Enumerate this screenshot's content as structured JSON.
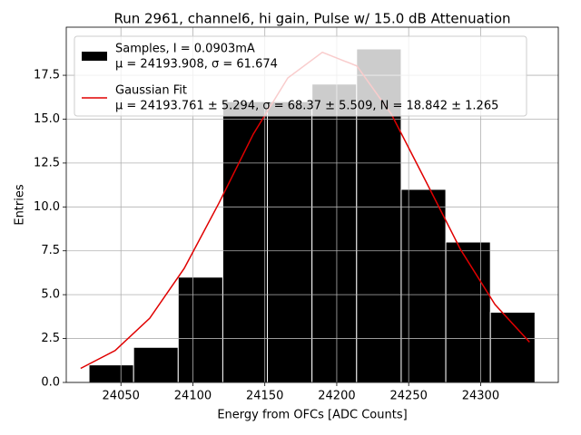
{
  "chart_data": {
    "type": "histogram",
    "title": "Run 2961, channel6, hi gain, Pulse w/ 15.0 dB Attenuation",
    "x_label": "Energy from OFCs [ADC Counts]",
    "y_label": "Entries",
    "bins": [
      24027.8,
      24058.8,
      24089.8,
      24120.8,
      24151.8,
      24182.8,
      24213.8,
      24244.8,
      24275.8,
      24306.8,
      24337.8
    ],
    "series": [
      {
        "name": "Samples, I = 0.0903mA",
        "stats": "μ = 24193.908, σ = 61.674",
        "color": "#000000",
        "edgecolor": "#ffffff",
        "values": [
          1,
          2,
          6,
          16,
          16,
          17,
          19,
          11,
          8,
          4
        ]
      },
      {
        "name": "Gaussian Fit",
        "stats": "μ = 24193.761 ± 5.294, σ = 68.37 ± 5.509, N = 18.842 ± 1.265",
        "color": "#e00000",
        "x": [
          24022,
          24046,
          24070,
          24094,
          24118,
          24142,
          24166,
          24190,
          24214,
          24238,
          24262,
          24286,
          24310,
          24334
        ],
        "values": [
          0.8,
          1.82,
          3.66,
          6.5,
          10.2,
          14.15,
          17.35,
          18.81,
          18.03,
          15.28,
          11.45,
          7.58,
          4.44,
          2.3
        ]
      }
    ],
    "xlim": [
      24012,
      24354
    ],
    "ylim": [
      0,
      20.24
    ],
    "xticks": [
      24050,
      24100,
      24150,
      24200,
      24250,
      24300
    ],
    "yticks": [
      {
        "value": 0,
        "label": "0.0"
      },
      {
        "value": 2.5,
        "label": "2.5"
      },
      {
        "value": 5,
        "label": "5.0"
      },
      {
        "value": 7.5,
        "label": "7.5"
      },
      {
        "value": 10,
        "label": "10.0"
      },
      {
        "value": 12.5,
        "label": "12.5"
      },
      {
        "value": 15,
        "label": "15.0"
      },
      {
        "value": 17.5,
        "label": "17.5"
      }
    ],
    "grid": true,
    "legend": "upper left"
  }
}
